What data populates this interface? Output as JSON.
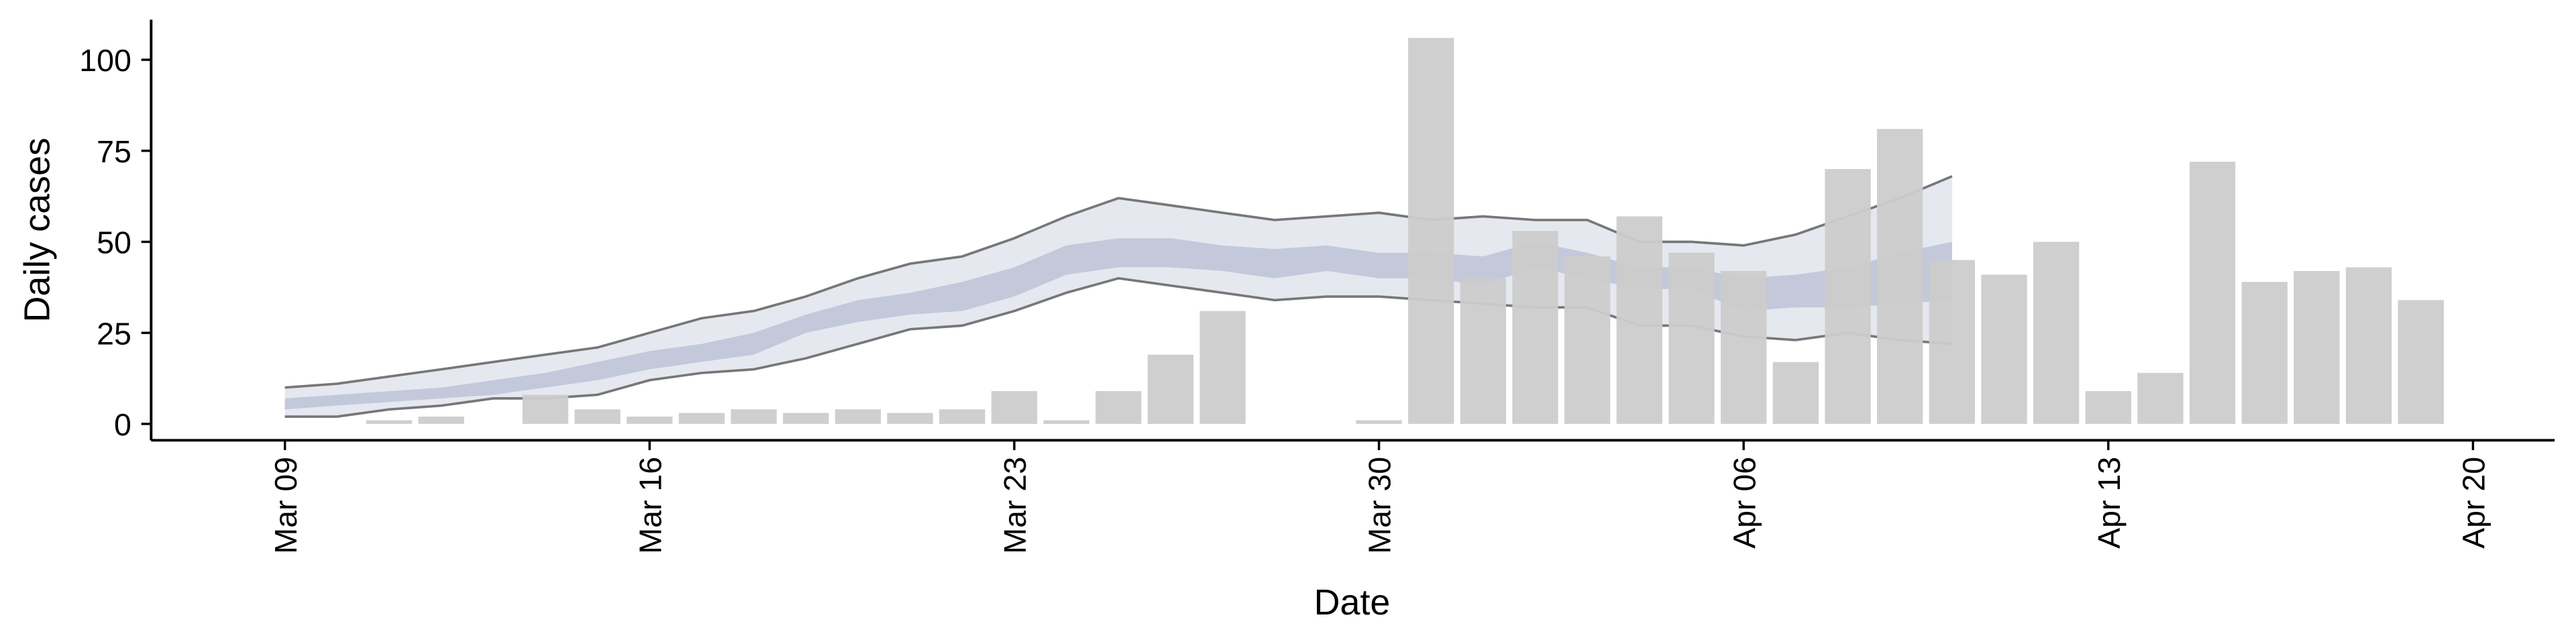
{
  "chart_data": {
    "type": "bar",
    "x_label": "Date",
    "y_label": "Daily cases",
    "x": [
      "Mar 09",
      "Mar 10",
      "Mar 11",
      "Mar 12",
      "Mar 13",
      "Mar 14",
      "Mar 15",
      "Mar 16",
      "Mar 17",
      "Mar 18",
      "Mar 19",
      "Mar 20",
      "Mar 21",
      "Mar 22",
      "Mar 23",
      "Mar 24",
      "Mar 25",
      "Mar 26",
      "Mar 27",
      "Mar 28",
      "Mar 29",
      "Mar 30",
      "Mar 31",
      "Apr 01",
      "Apr 02",
      "Apr 03",
      "Apr 04",
      "Apr 05",
      "Apr 06",
      "Apr 07",
      "Apr 08",
      "Apr 09",
      "Apr 10",
      "Apr 11",
      "Apr 12",
      "Apr 13",
      "Apr 14",
      "Apr 15",
      "Apr 16",
      "Apr 17",
      "Apr 18",
      "Apr 19"
    ],
    "values": [
      null,
      null,
      1,
      2,
      null,
      8,
      4,
      2,
      3,
      4,
      3,
      4,
      3,
      4,
      9,
      1,
      9,
      19,
      31,
      null,
      null,
      1,
      106,
      40,
      53,
      46,
      57,
      47,
      42,
      17,
      70,
      81,
      45,
      41,
      50,
      9,
      14,
      72,
      39,
      42,
      43,
      34
    ],
    "color": "#cccccc",
    "band": {
      "x": [
        "Mar 09",
        "Mar 10",
        "Mar 11",
        "Mar 12",
        "Mar 13",
        "Mar 14",
        "Mar 15",
        "Mar 16",
        "Mar 17",
        "Mar 18",
        "Mar 19",
        "Mar 20",
        "Mar 21",
        "Mar 22",
        "Mar 23",
        "Mar 24",
        "Mar 25",
        "Mar 26",
        "Mar 27",
        "Mar 28",
        "Mar 29",
        "Mar 30",
        "Mar 31",
        "Apr 01",
        "Apr 02",
        "Apr 03",
        "Apr 04",
        "Apr 05",
        "Apr 06",
        "Apr 07",
        "Apr 08",
        "Apr 09",
        "Apr 10"
      ],
      "outer_upper": [
        10,
        11,
        13,
        15,
        17,
        19,
        21,
        25,
        29,
        31,
        35,
        40,
        44,
        46,
        51,
        57,
        62,
        60,
        58,
        56,
        57,
        58,
        56,
        57,
        56,
        56,
        50,
        50,
        49,
        52,
        57,
        62,
        68
      ],
      "outer_lower": [
        2,
        2,
        4,
        5,
        7,
        7,
        8,
        12,
        14,
        15,
        18,
        22,
        26,
        27,
        31,
        36,
        40,
        38,
        36,
        34,
        35,
        35,
        34,
        33,
        32,
        32,
        27,
        27,
        24,
        23,
        25,
        23,
        22
      ],
      "inner_upper": [
        7,
        8,
        9,
        10,
        12,
        14,
        17,
        20,
        22,
        25,
        30,
        34,
        36,
        39,
        43,
        49,
        51,
        51,
        49,
        48,
        49,
        47,
        47,
        46,
        50,
        47,
        43,
        43,
        40,
        41,
        43,
        47,
        50
      ],
      "inner_lower": [
        4,
        5,
        6,
        7,
        8,
        10,
        12,
        15,
        17,
        19,
        25,
        28,
        30,
        31,
        35,
        41,
        43,
        43,
        42,
        40,
        42,
        40,
        40,
        38,
        43,
        40,
        37,
        37,
        31,
        32,
        32,
        33,
        34
      ],
      "outer_color": "#e6e8f0",
      "inner_color": "#c3c9db",
      "line_color": "#777777"
    },
    "xlim": [
      "Mar 07",
      "Apr 21"
    ],
    "xticks": [
      "Mar 09",
      "Mar 16",
      "Mar 23",
      "Mar 30",
      "Apr 06",
      "Apr 13",
      "Apr 20"
    ],
    "ylim": [
      -4.5,
      111
    ],
    "yticks": [
      0,
      25,
      50,
      75,
      100
    ]
  }
}
